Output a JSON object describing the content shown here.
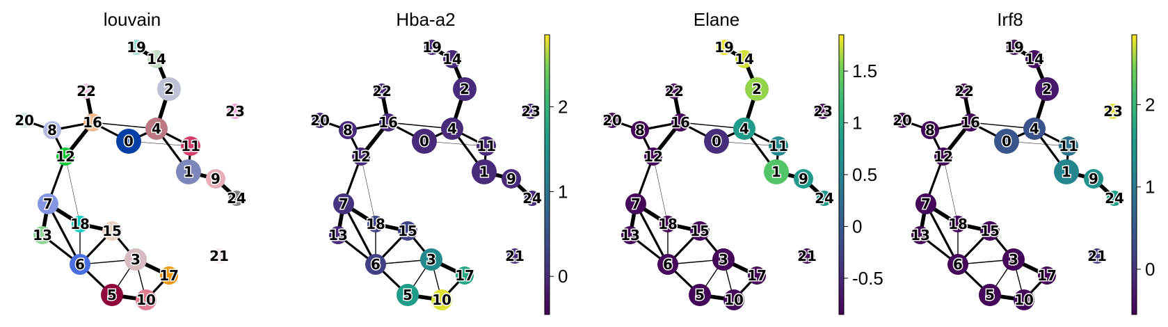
{
  "chart_data": {
    "type": "paga-graph",
    "panels": [
      {
        "title": "louvain",
        "color_mode": "categorical",
        "node_colors": {
          "0": "#023fa5",
          "1": "#7d87b9",
          "2": "#bec1d4",
          "3": "#d6bcc0",
          "4": "#bb7784",
          "5": "#8e063b",
          "6": "#4a6fe3",
          "7": "#8595e1",
          "8": "#b5bbe3",
          "9": "#e6afb9",
          "10": "#e07b91",
          "11": "#d33f6a",
          "12": "#11c638",
          "13": "#8dd593",
          "14": "#c6dec7",
          "15": "#ead3c6",
          "16": "#f0b98d",
          "17": "#ef9708",
          "18": "#0fcfc0",
          "19": "#9cded6",
          "20": "#d5eae7",
          "21": "#f3e1eb",
          "22": "#f6c4e1",
          "23": "#f79cd4",
          "24": "#7f7f7f"
        }
      },
      {
        "title": "Hba-a2",
        "color_mode": "continuous",
        "colorbar": {
          "ticks": [
            "0",
            "1",
            "2"
          ]
        }
      },
      {
        "title": "Elane",
        "color_mode": "continuous",
        "colorbar": {
          "ticks": [
            "-0.5",
            "0",
            "0.5",
            "1",
            "1.5"
          ]
        }
      },
      {
        "title": "Irf8",
        "color_mode": "continuous",
        "colorbar": {
          "ticks": [
            "0",
            "1",
            "2"
          ]
        }
      }
    ],
    "nodes": [
      "0",
      "1",
      "2",
      "3",
      "4",
      "5",
      "6",
      "7",
      "8",
      "9",
      "10",
      "11",
      "12",
      "13",
      "14",
      "15",
      "16",
      "17",
      "18",
      "19",
      "20",
      "21",
      "22",
      "23",
      "24"
    ],
    "edges": [
      [
        "19",
        "14",
        "thick"
      ],
      [
        "14",
        "2",
        "thick"
      ],
      [
        "2",
        "4",
        "thick"
      ],
      [
        "4",
        "11",
        "medium"
      ],
      [
        "4",
        "1",
        "medium"
      ],
      [
        "4",
        "0",
        "medium"
      ],
      [
        "4",
        "16",
        "thin"
      ],
      [
        "11",
        "1",
        "medium"
      ],
      [
        "11",
        "0",
        "hair"
      ],
      [
        "1",
        "9",
        "thick"
      ],
      [
        "9",
        "24",
        "thick"
      ],
      [
        "16",
        "22",
        "thick"
      ],
      [
        "16",
        "8",
        "medium"
      ],
      [
        "16",
        "12",
        "thick"
      ],
      [
        "16",
        "0",
        "medium"
      ],
      [
        "8",
        "20",
        "medium"
      ],
      [
        "8",
        "12",
        "medium"
      ],
      [
        "12",
        "7",
        "medium"
      ],
      [
        "12",
        "18",
        "hair"
      ],
      [
        "7",
        "13",
        "thick"
      ],
      [
        "7",
        "18",
        "thick"
      ],
      [
        "7",
        "6",
        "medium"
      ],
      [
        "13",
        "6",
        "medium"
      ],
      [
        "18",
        "15",
        "thick"
      ],
      [
        "18",
        "6",
        "thin"
      ],
      [
        "15",
        "6",
        "medium"
      ],
      [
        "15",
        "3",
        "medium"
      ],
      [
        "6",
        "3",
        "thin"
      ],
      [
        "6",
        "5",
        "medium"
      ],
      [
        "3",
        "17",
        "thick"
      ],
      [
        "3",
        "5",
        "thin"
      ],
      [
        "3",
        "10",
        "thin"
      ],
      [
        "5",
        "10",
        "thick"
      ],
      [
        "17",
        "10",
        "medium"
      ]
    ],
    "colorbars": {
      "colormap": "viridis"
    },
    "hba_a2": {
      "0": 0.0,
      "1": 0.0,
      "2": 0.0,
      "3": 1.3,
      "4": 0.0,
      "5": 1.6,
      "6": 0.25,
      "7": 0.1,
      "8": 0.0,
      "9": 0.0,
      "10": 2.75,
      "11": 0.0,
      "12": 0.0,
      "13": 0.0,
      "14": 0.0,
      "15": 0.3,
      "16": 0.0,
      "17": 1.75,
      "18": 0.3,
      "19": 0.0,
      "20": 0.0,
      "21": 0.0,
      "22": 0.0,
      "23": 0.0,
      "24": 0.0
    },
    "elane": {
      "0": -0.45,
      "1": 1.35,
      "2": 1.6,
      "3": -0.8,
      "4": 0.8,
      "5": -0.8,
      "6": -0.8,
      "7": -0.8,
      "8": -0.8,
      "9": 0.8,
      "10": -0.8,
      "11": 0.6,
      "12": -0.8,
      "13": -0.8,
      "14": 1.75,
      "15": -0.8,
      "16": -0.8,
      "17": -0.8,
      "18": -0.8,
      "19": 1.8,
      "20": -0.8,
      "21": -0.8,
      "22": -0.8,
      "23": -0.8,
      "24": 0.75
    },
    "irf8": {
      "0": 0.45,
      "1": 1.2,
      "2": -0.3,
      "3": -0.5,
      "4": 0.4,
      "5": -0.5,
      "6": -0.5,
      "7": -0.5,
      "8": -0.5,
      "9": 1.4,
      "10": -0.5,
      "11": 0.9,
      "12": -0.5,
      "13": -0.5,
      "14": -0.4,
      "15": -0.5,
      "16": -0.5,
      "17": -0.5,
      "18": -0.5,
      "19": -0.4,
      "20": -0.5,
      "21": 0.1,
      "22": -0.5,
      "23": 2.75,
      "24": 1.6
    }
  }
}
